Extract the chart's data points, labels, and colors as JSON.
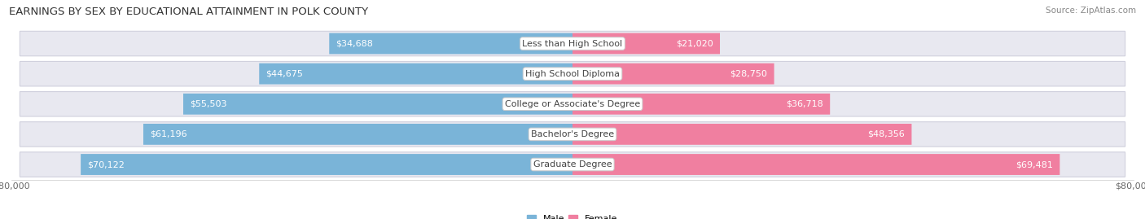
{
  "title": "EARNINGS BY SEX BY EDUCATIONAL ATTAINMENT IN POLK COUNTY",
  "source": "Source: ZipAtlas.com",
  "categories": [
    "Less than High School",
    "High School Diploma",
    "College or Associate's Degree",
    "Bachelor's Degree",
    "Graduate Degree"
  ],
  "male_values": [
    34688,
    44675,
    55503,
    61196,
    70122
  ],
  "female_values": [
    21020,
    28750,
    36718,
    48356,
    69481
  ],
  "max_value": 80000,
  "male_color": "#7ab4d8",
  "female_color": "#f07fa0",
  "row_bg_color": "#e8e8f0",
  "row_border_color": "#d0d0dd",
  "bar_height": 0.68,
  "title_fontsize": 9.5,
  "label_fontsize": 8,
  "tick_fontsize": 8,
  "source_fontsize": 7.5
}
